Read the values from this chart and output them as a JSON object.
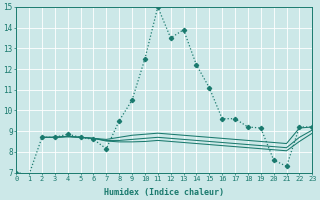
{
  "xlabel": "Humidex (Indice chaleur)",
  "bg_color": "#cce8e8",
  "grid_color": "#ffffff",
  "line_color": "#1a7a6e",
  "xmin": 0,
  "xmax": 23,
  "ymin": 7,
  "ymax": 15,
  "main_x": [
    0,
    1,
    2,
    3,
    4,
    5,
    6,
    7,
    8,
    9,
    10,
    11,
    12,
    13,
    14,
    15,
    16,
    17,
    18,
    19,
    20,
    21,
    22,
    23
  ],
  "main_y": [
    7.0,
    6.9,
    8.7,
    8.7,
    8.85,
    8.7,
    8.6,
    8.15,
    9.5,
    10.5,
    12.5,
    15.0,
    13.5,
    13.9,
    12.2,
    11.1,
    9.6,
    9.6,
    9.2,
    9.15,
    7.6,
    7.3,
    9.2,
    9.2
  ],
  "flat_lines": [
    {
      "x": [
        2,
        3,
        4,
        5,
        6,
        7,
        8,
        9,
        10,
        11,
        12,
        13,
        14,
        15,
        16,
        17,
        18,
        19,
        20,
        21,
        22,
        23
      ],
      "y": [
        8.7,
        8.7,
        8.75,
        8.7,
        8.65,
        8.6,
        8.7,
        8.8,
        8.85,
        8.9,
        8.85,
        8.8,
        8.75,
        8.7,
        8.65,
        8.6,
        8.55,
        8.5,
        8.45,
        8.4,
        9.15,
        9.2
      ]
    },
    {
      "x": [
        2,
        3,
        4,
        5,
        6,
        7,
        8,
        9,
        10,
        11,
        12,
        13,
        14,
        15,
        16,
        17,
        18,
        19,
        20,
        21,
        22,
        23
      ],
      "y": [
        8.7,
        8.7,
        8.75,
        8.7,
        8.65,
        8.55,
        8.55,
        8.6,
        8.65,
        8.7,
        8.65,
        8.6,
        8.55,
        8.5,
        8.45,
        8.4,
        8.35,
        8.3,
        8.25,
        8.2,
        8.7,
        9.05
      ]
    },
    {
      "x": [
        2,
        3,
        4,
        5,
        6,
        7,
        8,
        9,
        10,
        11,
        12,
        13,
        14,
        15,
        16,
        17,
        18,
        19,
        20,
        21,
        22,
        23
      ],
      "y": [
        8.7,
        8.7,
        8.72,
        8.7,
        8.65,
        8.52,
        8.48,
        8.48,
        8.5,
        8.55,
        8.5,
        8.45,
        8.4,
        8.35,
        8.3,
        8.25,
        8.2,
        8.15,
        8.1,
        8.05,
        8.5,
        8.9
      ]
    }
  ]
}
